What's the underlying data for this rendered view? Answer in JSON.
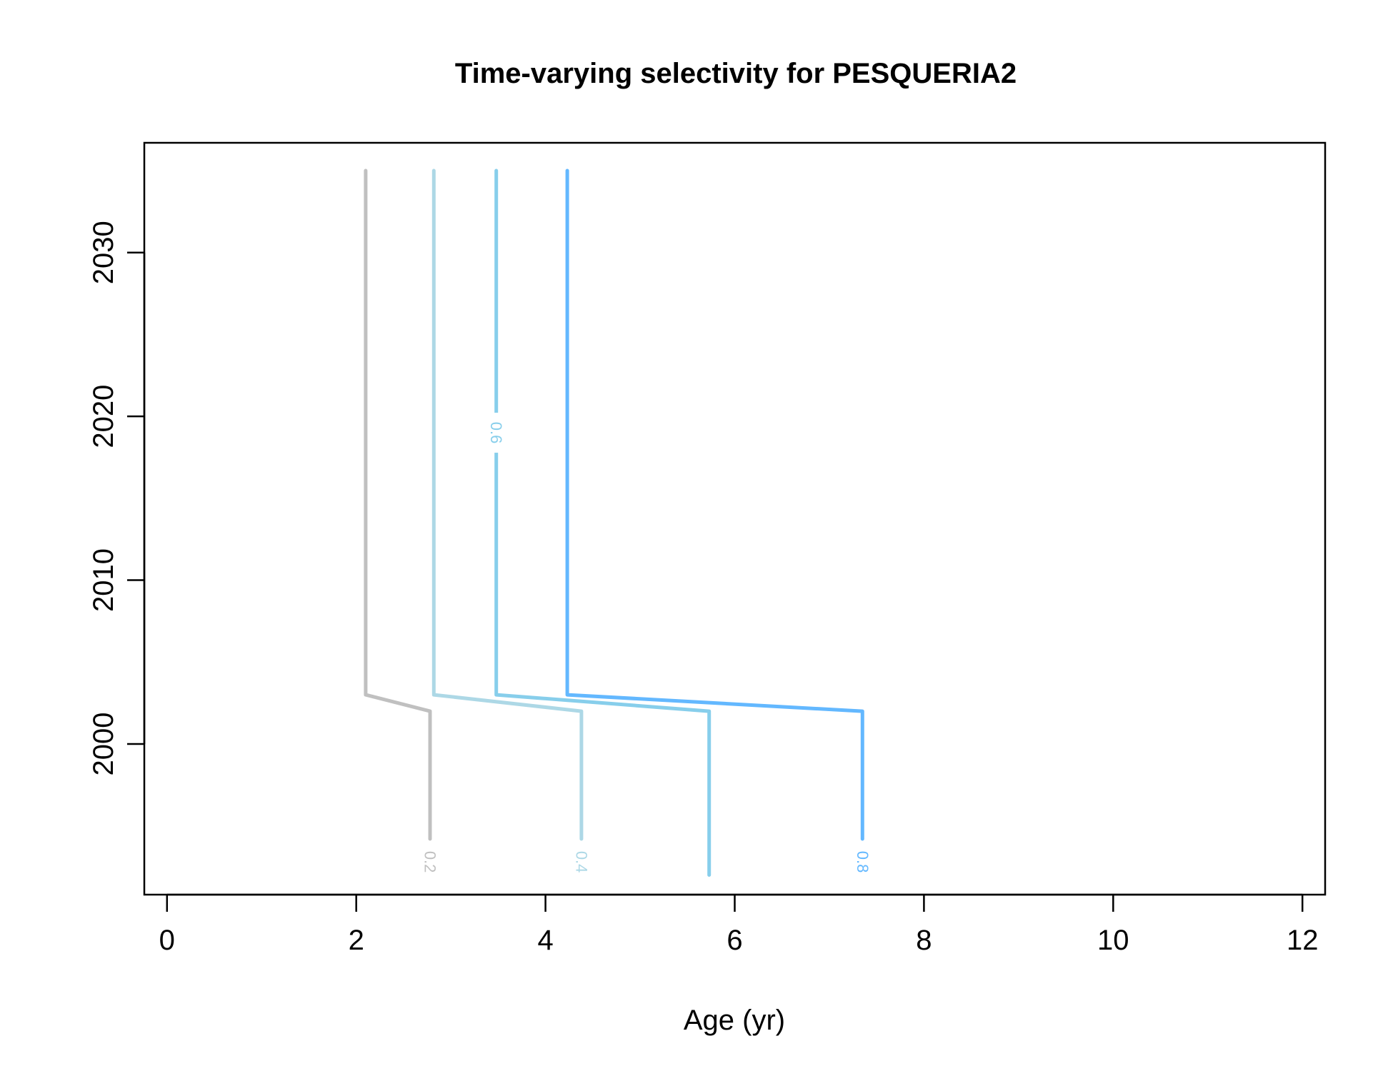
{
  "chart_data": {
    "type": "line",
    "title": "Time-varying selectivity for PESQUERIA2",
    "xlabel": "Age (yr)",
    "ylabel": "",
    "xlim": [
      -0.24,
      12.24
    ],
    "ylim": [
      1990.8,
      2036.7
    ],
    "x_ticks": [
      0,
      2,
      4,
      6,
      8,
      10,
      12
    ],
    "y_ticks": [
      2000,
      2010,
      2020,
      2030
    ],
    "grid": false,
    "series": [
      {
        "name": "0.2",
        "color": "#c0c0c0",
        "points": [
          [
            2.1,
            2035
          ],
          [
            2.1,
            2003
          ],
          [
            2.78,
            2002
          ],
          [
            2.78,
            1994.2
          ]
        ],
        "label_at": [
          2.78,
          1992.8
        ]
      },
      {
        "name": "0.4",
        "color": "#add8e6",
        "points": [
          [
            2.82,
            2035
          ],
          [
            2.82,
            2003
          ],
          [
            4.38,
            2002
          ],
          [
            4.38,
            1994.2
          ]
        ],
        "label_at": [
          4.38,
          1992.8
        ]
      },
      {
        "name": "0.6",
        "color": "#87ceeb",
        "points": [
          [
            3.48,
            2035
          ],
          [
            3.48,
            2003
          ],
          [
            5.73,
            2002
          ],
          [
            5.73,
            1992.0
          ]
        ],
        "label_at": [
          3.48,
          2019.0
        ]
      },
      {
        "name": "0.8",
        "color": "#63b8ff",
        "points": [
          [
            4.23,
            2035
          ],
          [
            4.23,
            2003
          ],
          [
            7.35,
            2002
          ],
          [
            7.35,
            1994.2
          ]
        ],
        "label_at": [
          7.35,
          1992.8
        ]
      }
    ]
  }
}
